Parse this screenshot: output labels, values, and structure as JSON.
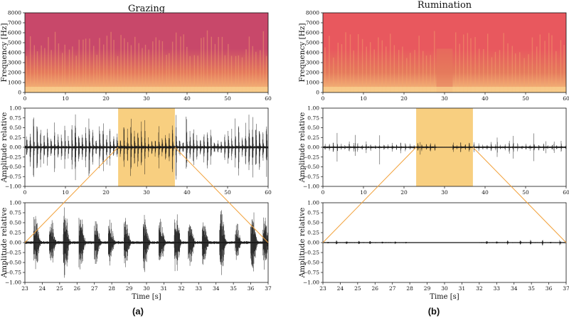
{
  "figure": {
    "panel_a_caption": "(a)",
    "panel_b_caption": "(b)"
  },
  "colors": {
    "highlight": "#f7c76a",
    "zoom_line": "#f2a13a",
    "signal": "#111111",
    "spec_low": "#f6c07f",
    "spec_mid": "#e57a5c",
    "spec_high_grazing": "#c8486a",
    "spec_high_rumination": "#e8585e"
  },
  "chart_data": [
    {
      "id": "grazing-spectrogram",
      "type": "heatmap",
      "title": "Grazing",
      "ylabel": "Frequency [Hz]",
      "xlim": [
        0,
        60
      ],
      "ylim": [
        0,
        8000
      ],
      "xticks": [
        0,
        10,
        20,
        30,
        40,
        50,
        60
      ],
      "yticks": [
        0,
        1000,
        2000,
        3000,
        4000,
        5000,
        6000,
        7000,
        8000
      ],
      "event_count": 70
    },
    {
      "id": "grazing-waveform",
      "type": "line",
      "ylabel": "Amplitude relative",
      "xlim": [
        0,
        60
      ],
      "ylim": [
        -1.0,
        1.0
      ],
      "xticks": [
        0,
        10,
        20,
        30,
        40,
        50,
        60
      ],
      "yticks": [
        "−1.00",
        "−0.75",
        "−0.50",
        "−0.25",
        "0.00",
        "0.25",
        "0.50",
        "0.75",
        "1.00"
      ],
      "highlight": [
        23,
        37
      ],
      "event_count": 70
    },
    {
      "id": "grazing-zoom",
      "type": "line",
      "ylabel": "Amplitude relative",
      "xlabel": "Time [s]",
      "xlim": [
        23,
        37
      ],
      "ylim": [
        -1.0,
        1.0
      ],
      "xticks": [
        23,
        24,
        25,
        26,
        27,
        28,
        29,
        30,
        31,
        32,
        33,
        34,
        35,
        36,
        37
      ],
      "yticks": [
        "−1.00",
        "−0.75",
        "−0.50",
        "−0.25",
        "0.00",
        "0.25",
        "0.50",
        "0.75",
        "1.00"
      ],
      "events": [
        23.6,
        24.5,
        25.3,
        26.2,
        27.1,
        27.9,
        28.8,
        29.9,
        30.8,
        31.7,
        32.5,
        33.3,
        34.3,
        35.2,
        36.1,
        36.8
      ]
    },
    {
      "id": "rumination-spectrogram",
      "type": "heatmap",
      "title": "Rumination",
      "ylabel": "Frequency [Hz]",
      "xlim": [
        0,
        60
      ],
      "ylim": [
        0,
        8000
      ],
      "xticks": [
        0,
        10,
        20,
        30,
        40,
        50,
        60
      ],
      "yticks": [
        0,
        1000,
        2000,
        3000,
        4000,
        5000,
        6000,
        7000,
        8000
      ],
      "quiet_interval": [
        28,
        32
      ],
      "event_count": 60
    },
    {
      "id": "rumination-waveform",
      "type": "line",
      "ylabel": "Amplitude relative",
      "xlim": [
        0,
        60
      ],
      "ylim": [
        -1.0,
        1.0
      ],
      "xticks": [
        0,
        10,
        20,
        30,
        40,
        50,
        60
      ],
      "yticks": [
        "−1.00",
        "−0.75",
        "−0.50",
        "−0.25",
        "0.00",
        "0.25",
        "0.50",
        "0.75",
        "1.00"
      ],
      "highlight": [
        23,
        37
      ],
      "quiet_interval": [
        28,
        32
      ]
    },
    {
      "id": "rumination-zoom",
      "type": "line",
      "ylabel": "Amplitude relative",
      "xlabel": "Time [s]",
      "xlim": [
        23,
        37
      ],
      "ylim": [
        -1.0,
        1.0
      ],
      "xticks": [
        23,
        24,
        25,
        26,
        27,
        28,
        29,
        30,
        31,
        32,
        33,
        34,
        35,
        36,
        37
      ],
      "yticks": [
        "−1.00",
        "−0.75",
        "−0.50",
        "−0.25",
        "0.00",
        "0.25",
        "0.50",
        "0.75",
        "1.00"
      ],
      "quiet_interval": [
        28,
        32
      ]
    }
  ]
}
